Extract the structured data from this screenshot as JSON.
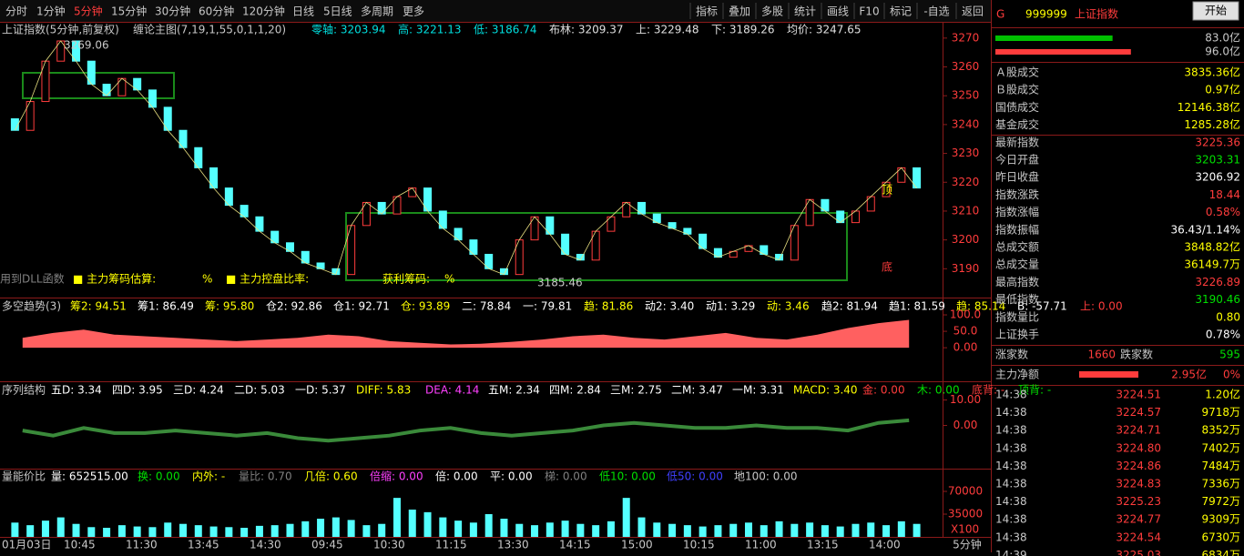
{
  "toolbar": {
    "left": [
      "分时",
      "1分钟",
      "5分钟",
      "15分钟",
      "30分钟",
      "60分钟",
      "120分钟",
      "日线",
      "5日线",
      "多周期",
      "更多"
    ],
    "active": 2,
    "right": [
      "指标",
      "叠加",
      "多股",
      "统计",
      "画线",
      "F10",
      "标记",
      "-自选",
      "返回"
    ]
  },
  "chart_data": {
    "type": "candlestick",
    "info": [
      {
        "text": "上证指数(5分钟,前复权)",
        "color": "#c8c8c8"
      },
      {
        "text": "缠论主图(7,19,1,55,0,1,1,20)",
        "color": "#c8c8c8"
      },
      {
        "text": "零轴: 3203.94",
        "color": "#00e0e0"
      },
      {
        "text": "高: 3221.13",
        "color": "#00e0e0"
      },
      {
        "text": "低: 3186.74",
        "color": "#00e0e0"
      },
      {
        "text": "布林: 3209.37",
        "color": "#e0e0e0"
      },
      {
        "text": "上: 3229.48",
        "color": "#e0e0e0"
      },
      {
        "text": "下: 3189.26",
        "color": "#e0e0e0"
      },
      {
        "text": "均价: 3247.65",
        "color": "#e0e0e0"
      }
    ],
    "ylim": [
      3180,
      3275
    ],
    "yticks": [
      3190,
      3200,
      3210,
      3220,
      3230,
      3240,
      3250,
      3260,
      3270
    ],
    "open": [
      3242,
      3238,
      3248,
      3262,
      3269,
      3262,
      3254,
      3250,
      3256,
      3252,
      3246,
      3238,
      3232,
      3225,
      3218,
      3212,
      3208,
      3203,
      3199,
      3196,
      3192,
      3190,
      3188,
      3205,
      3213,
      3209,
      3215,
      3218,
      3210,
      3204,
      3200,
      3195,
      3190,
      3188,
      3200,
      3208,
      3202,
      3195,
      3193,
      3203,
      3208,
      3213,
      3209,
      3206,
      3204,
      3202,
      3197,
      3194,
      3196,
      3198,
      3195,
      3193,
      3205,
      3214,
      3210,
      3206,
      3210,
      3215,
      3220,
      3225
    ],
    "close": [
      3238,
      3248,
      3262,
      3269,
      3262,
      3254,
      3250,
      3256,
      3252,
      3246,
      3238,
      3232,
      3225,
      3218,
      3212,
      3208,
      3203,
      3199,
      3196,
      3192,
      3190,
      3188,
      3205,
      3213,
      3209,
      3215,
      3218,
      3210,
      3204,
      3200,
      3195,
      3190,
      3188,
      3200,
      3208,
      3202,
      3195,
      3193,
      3203,
      3208,
      3213,
      3209,
      3206,
      3204,
      3202,
      3197,
      3194,
      3196,
      3198,
      3195,
      3193,
      3205,
      3214,
      3210,
      3206,
      3210,
      3215,
      3220,
      3225,
      3218
    ],
    "up_color": "#ff3c3c",
    "down_color": "#54ffff",
    "annotations": [
      {
        "text": "3269.06",
        "color": "#c8c8c8"
      },
      {
        "text": "3185.46",
        "color": "#c8c8c8"
      },
      {
        "text": "用到DLL函数",
        "color": "#808080"
      },
      {
        "text": "■ 主力筹码估算:",
        "color": "#ffff00"
      },
      {
        "text": "%",
        "color": "#ffff00"
      },
      {
        "text": "■ 主力控盘比率:",
        "color": "#ffff00"
      },
      {
        "text": "获利筹码:",
        "color": "#ffff00"
      },
      {
        "text": "%",
        "color": "#ffff00"
      },
      {
        "text": "顶",
        "color": "#ffff00"
      },
      {
        "text": "底",
        "color": "#ff3c3c"
      }
    ]
  },
  "indicators": [
    {
      "type": "area",
      "header": [
        {
          "text": "多空趋势(3)",
          "color": "#c8c8c8"
        },
        {
          "text": "筹2: 94.51",
          "color": "#ffff00"
        },
        {
          "text": "筹1: 86.49",
          "color": "#ffffff"
        },
        {
          "text": "筹: 95.80",
          "color": "#ffff00"
        },
        {
          "text": "仓2: 92.86",
          "color": "#ffffff"
        },
        {
          "text": "仓1: 92.71",
          "color": "#ffffff"
        },
        {
          "text": "仓: 93.89",
          "color": "#ffff00"
        },
        {
          "text": "二: 78.84",
          "color": "#ffffff"
        },
        {
          "text": "一: 79.81",
          "color": "#ffffff"
        },
        {
          "text": "趋: 81.86",
          "color": "#ffff00"
        },
        {
          "text": "动2: 3.40",
          "color": "#ffffff"
        },
        {
          "text": "动1: 3.29",
          "color": "#ffffff"
        },
        {
          "text": "动: 3.46",
          "color": "#ffff00"
        },
        {
          "text": "趋2: 81.94",
          "color": "#ffffff"
        },
        {
          "text": "趋1: 81.59",
          "color": "#ffffff"
        },
        {
          "text": "趋: 85.14",
          "color": "#ffff00"
        },
        {
          "text": "B: -57.71",
          "color": "#ffffff"
        },
        {
          "text": "上: 0.00",
          "color": "#ff3c3c"
        }
      ],
      "values": [
        30,
        45,
        55,
        40,
        35,
        30,
        25,
        20,
        25,
        30,
        40,
        35,
        20,
        15,
        10,
        12,
        18,
        25,
        35,
        40,
        30,
        25,
        35,
        45,
        30,
        25,
        40,
        60,
        75,
        85
      ],
      "color": "#ff6060",
      "ylim": [
        -105,
        150
      ],
      "yticks": [
        {
          "value": 0,
          "label": "0.00"
        },
        {
          "value": 50,
          "label": "50.0"
        },
        {
          "value": 100,
          "label": "100.0"
        }
      ]
    },
    {
      "type": "line",
      "header": [
        {
          "text": "序列结构",
          "color": "#c8c8c8"
        },
        {
          "text": "五D: 3.34",
          "color": "#ffffff"
        },
        {
          "text": "四D: 3.95",
          "color": "#ffffff"
        },
        {
          "text": "三D: 4.24",
          "color": "#ffffff"
        },
        {
          "text": "二D: 5.03",
          "color": "#ffffff"
        },
        {
          "text": "一D: 5.37",
          "color": "#ffffff"
        },
        {
          "text": "DIFF: 5.83",
          "color": "#ffff00"
        },
        {
          "text": "DEA: 4.14",
          "color": "#ff40ff"
        },
        {
          "text": "五M: 2.34",
          "color": "#ffffff"
        },
        {
          "text": "四M: 2.84",
          "color": "#ffffff"
        },
        {
          "text": "三M: 2.75",
          "color": "#ffffff"
        },
        {
          "text": "二M: 3.47",
          "color": "#ffffff"
        },
        {
          "text": "一M: 3.31",
          "color": "#ffffff"
        },
        {
          "text": "MACD: 3.40",
          "color": "#ffff00"
        },
        {
          "text": "金: 0.00",
          "color": "#ff3c3c"
        },
        {
          "text": "木: 0.00",
          "color": "#00e000"
        },
        {
          "text": "底背: -",
          "color": "#ff3c3c"
        },
        {
          "text": "顶背: -",
          "color": "#00e000"
        }
      ],
      "values": [
        -2,
        -4,
        -1,
        -3,
        -3,
        -2,
        -3,
        -4,
        -3,
        -5,
        -6,
        -5,
        -4,
        -2,
        -1,
        -3,
        -4,
        -3,
        -2,
        0,
        1,
        0,
        -1,
        -1,
        0,
        -1,
        -1,
        -2,
        1,
        2
      ],
      "color": "#3a8a3a",
      "ylim": [
        -17,
        17
      ],
      "yticks": [
        {
          "value": 0,
          "label": "0.00"
        },
        {
          "value": 10,
          "label": "10.00"
        }
      ]
    },
    {
      "type": "bar",
      "header": [
        {
          "text": "量能价比",
          "color": "#c8c8c8"
        },
        {
          "text": "量: 652515.00",
          "color": "#ffffff"
        },
        {
          "text": "换: 0.00",
          "color": "#00e000"
        },
        {
          "text": "内外: -",
          "color": "#ffff00"
        },
        {
          "text": "量比: 0.70",
          "color": "#808080"
        },
        {
          "text": "几倍: 0.60",
          "color": "#ffff00"
        },
        {
          "text": "倍缩: 0.00",
          "color": "#ff40ff"
        },
        {
          "text": "倍: 0.00",
          "color": "#ffffff"
        },
        {
          "text": "平: 0.00",
          "color": "#ffffff"
        },
        {
          "text": "梯: 0.00",
          "color": "#808080"
        },
        {
          "text": "低10: 0.00",
          "color": "#00e000"
        },
        {
          "text": "低50: 0.00",
          "color": "#4040ff"
        },
        {
          "text": "地100: 0.00",
          "color": "#c8c8c8"
        }
      ],
      "values": [
        22000,
        18000,
        25000,
        30000,
        20000,
        15000,
        14000,
        18000,
        16000,
        15000,
        22000,
        20000,
        18000,
        16000,
        15000,
        14000,
        17000,
        18000,
        20000,
        24000,
        28000,
        30000,
        26000,
        18000,
        20000,
        60000,
        42000,
        38000,
        30000,
        25000,
        22000,
        35000,
        28000,
        20000,
        18000,
        22000,
        25000,
        20000,
        18000,
        24000,
        60000,
        30000,
        22000,
        20000,
        18000,
        16000,
        18000,
        20000,
        22000,
        18000,
        24000,
        20000,
        22000,
        18000,
        16000,
        20000,
        22000,
        18000,
        24000,
        20000
      ],
      "color": "#54ffff",
      "ylim": [
        0,
        105000
      ],
      "yticks": [
        35000,
        70000
      ],
      "unit": "X100"
    }
  ],
  "time_axis": [
    "01月03日",
    "10:45",
    "11:30",
    "13:45",
    "14:30",
    "09:45",
    "10:30",
    "11:15",
    "13:30",
    "14:15",
    "15:00",
    "10:15",
    "11:00",
    "13:15",
    "14:00"
  ],
  "period": "5分钟",
  "quote": {
    "code": "999999",
    "name": "上证指数",
    "button": "开始",
    "bars": [
      {
        "value": 83.0,
        "label": "83.0亿",
        "color": "#00c000"
      },
      {
        "value": 96.0,
        "label": "96.0亿",
        "color": "#ff3c3c"
      }
    ],
    "rows": [
      {
        "label": "Ａ股成交",
        "value": "3835.36亿",
        "color": "#ffff00"
      },
      {
        "label": "Ｂ股成交",
        "value": "0.97亿",
        "color": "#ffff00"
      },
      {
        "label": "国债成交",
        "value": "12146.38亿",
        "color": "#ffff00"
      },
      {
        "label": "基金成交",
        "value": "1285.28亿",
        "color": "#ffff00"
      },
      {
        "label": "最新指数",
        "value": "3225.36",
        "color": "#ff3c3c"
      },
      {
        "label": "今日开盘",
        "value": "3203.31",
        "color": "#00e000"
      },
      {
        "label": "昨日收盘",
        "value": "3206.92",
        "color": "#ffffff"
      },
      {
        "label": "指数涨跌",
        "value": "18.44",
        "color": "#ff3c3c"
      },
      {
        "label": "指数涨幅",
        "value": "0.58%",
        "color": "#ff3c3c"
      },
      {
        "label": "指数振幅",
        "value": "36.43/1.14%",
        "color": "#ffffff"
      },
      {
        "label": "总成交额",
        "value": "3848.82亿",
        "color": "#ffff00"
      },
      {
        "label": "总成交量",
        "value": "36149.7万",
        "color": "#ffff00"
      },
      {
        "label": "最高指数",
        "value": "3226.89",
        "color": "#ff3c3c"
      },
      {
        "label": "最低指数",
        "value": "3190.46",
        "color": "#00e000"
      },
      {
        "label": "指数量比",
        "value": "0.80",
        "color": "#ffff00"
      },
      {
        "label": "上证换手",
        "value": "0.78%",
        "color": "#ffffff"
      }
    ],
    "breadth": [
      "涨家数",
      "1660",
      "跌家数",
      "595"
    ],
    "main": [
      "主力净额",
      "2.95亿",
      "0%"
    ],
    "trades": [
      [
        "14:38",
        "3224.51",
        "1.20亿"
      ],
      [
        "14:38",
        "3224.57",
        "9718万"
      ],
      [
        "14:38",
        "3224.71",
        "8352万"
      ],
      [
        "14:38",
        "3224.80",
        "7402万"
      ],
      [
        "14:38",
        "3224.86",
        "7484万"
      ],
      [
        "14:38",
        "3224.83",
        "7336万"
      ],
      [
        "14:38",
        "3225.23",
        "7972万"
      ],
      [
        "14:38",
        "3224.77",
        "9309万"
      ],
      [
        "14:38",
        "3224.54",
        "6730万"
      ],
      [
        "14:39",
        "3225.03",
        "6834万"
      ]
    ]
  }
}
